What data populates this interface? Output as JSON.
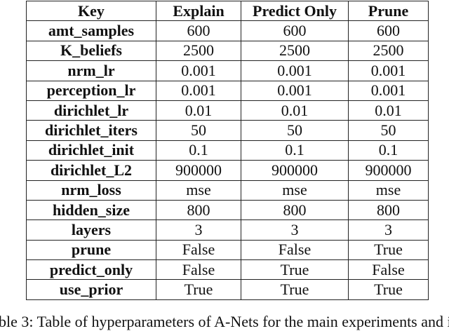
{
  "table": {
    "header": [
      "Key",
      "Explain",
      "Predict Only",
      "Prune"
    ],
    "rows": [
      [
        "amt_samples",
        "600",
        "600",
        "600"
      ],
      [
        "K_beliefs",
        "2500",
        "2500",
        "2500"
      ],
      [
        "nrm_lr",
        "0.001",
        "0.001",
        "0.001"
      ],
      [
        "perception_lr",
        "0.001",
        "0.001",
        "0.001"
      ],
      [
        "dirichlet_lr",
        "0.01",
        "0.01",
        "0.01"
      ],
      [
        "dirichlet_iters",
        "50",
        "50",
        "50"
      ],
      [
        "dirichlet_init",
        "0.1",
        "0.1",
        "0.1"
      ],
      [
        "dirichlet_L2",
        "900000",
        "900000",
        "900000"
      ],
      [
        "nrm_loss",
        "mse",
        "mse",
        "mse"
      ],
      [
        "hidden_size",
        "800",
        "800",
        "800"
      ],
      [
        "layers",
        "3",
        "3",
        "3"
      ],
      [
        "prune",
        "False",
        "False",
        "True"
      ],
      [
        "predict_only",
        "False",
        "True",
        "False"
      ],
      [
        "use_prior",
        "True",
        "True",
        "True"
      ]
    ]
  },
  "caption": "ble 3: Table of hyperparameters of A-Nets for the main experiments and i"
}
